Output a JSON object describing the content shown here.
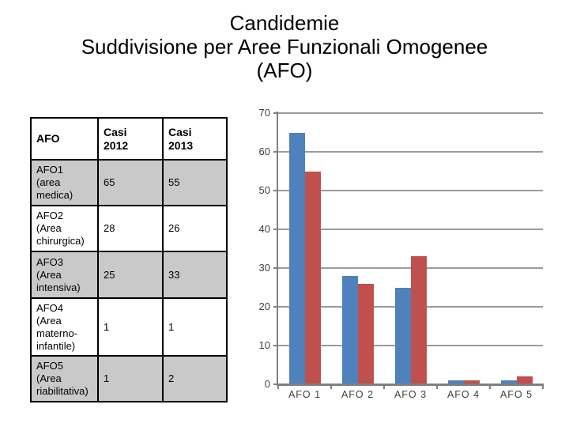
{
  "slide": {
    "title_lines": [
      "Candidemie",
      "Suddivisione per Aree Funzionali Omogenee",
      "(AFO)"
    ]
  },
  "table": {
    "headers": [
      "AFO",
      "Casi\n2012",
      "Casi\n2013"
    ],
    "rows": [
      {
        "afo": "AFO1\n(area\nmedica)",
        "casi_2012": "65",
        "casi_2013": "55"
      },
      {
        "afo": "AFO2\n(Area\nchirurgica)",
        "casi_2012": "28",
        "casi_2013": "26"
      },
      {
        "afo": "AFO3\n(Area\nintensiva)",
        "casi_2012": "25",
        "casi_2013": "33"
      },
      {
        "afo": "AFO4\n(Area\nmaterno-\ninfantile)",
        "casi_2012": "1",
        "casi_2013": "1"
      },
      {
        "afo": "AFO5\n(Area\nriabilitativa)",
        "casi_2012": "1",
        "casi_2013": "2"
      }
    ],
    "row_shade_color": "#C9C9C9"
  },
  "chart_data": {
    "type": "bar",
    "title": "",
    "xlabel": "",
    "ylabel": "",
    "categories": [
      "AFO 1",
      "AFO 2",
      "AFO 3",
      "AFO 4",
      "AFO 5"
    ],
    "series": [
      {
        "name": "Casi 2012",
        "color": "#4F81BD",
        "values": [
          65,
          28,
          25,
          1,
          1
        ]
      },
      {
        "name": "Casi 2013",
        "color": "#C0504D",
        "values": [
          55,
          26,
          33,
          1,
          2
        ]
      }
    ],
    "ylim": [
      0,
      70
    ],
    "yticks": [
      0,
      10,
      20,
      30,
      40,
      50,
      60,
      70
    ],
    "grid": true,
    "legend": "none"
  }
}
